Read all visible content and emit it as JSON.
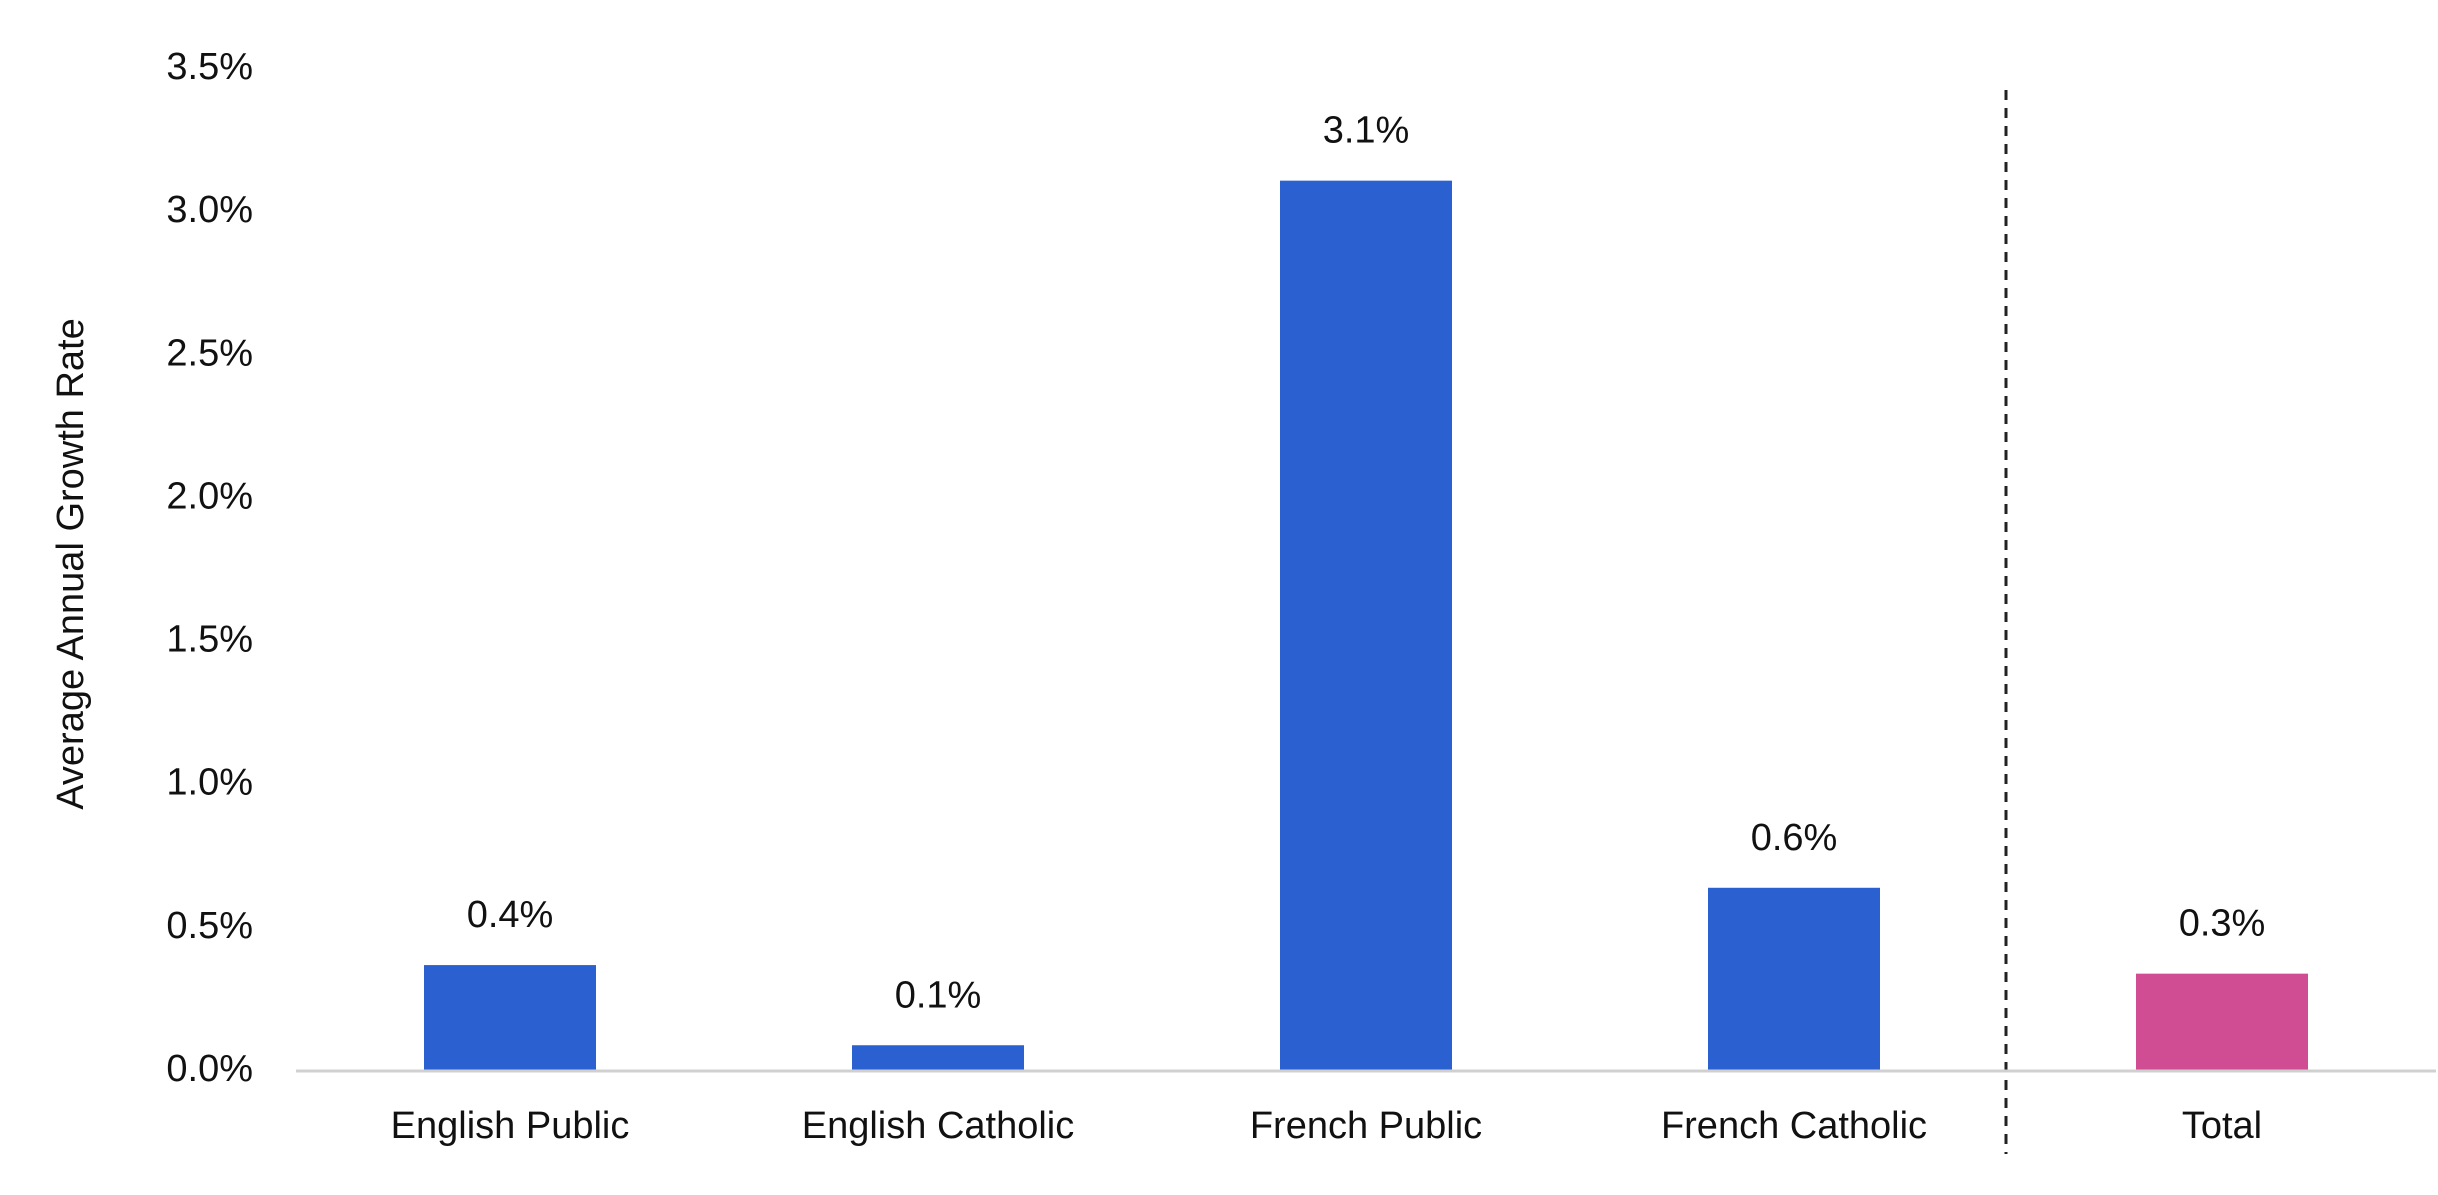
{
  "chart_data": {
    "type": "bar",
    "ylabel": "Average Annual Growth Rate",
    "categories": [
      "English Public",
      "English Catholic",
      "French Public",
      "French Catholic",
      "Total"
    ],
    "values": [
      0.37,
      0.09,
      3.11,
      0.64,
      0.34
    ],
    "value_labels": [
      "0.4%",
      "0.1%",
      "3.1%",
      "0.6%",
      "0.3%"
    ],
    "colors": [
      "#2b60d0",
      "#2b60d0",
      "#2b60d0",
      "#2b60d0",
      "#d14d93"
    ],
    "ylim": [
      0,
      3.5
    ],
    "yticks": [
      {
        "value": 0,
        "label": "0.0%"
      },
      {
        "value": 0.5,
        "label": "0.5%"
      },
      {
        "value": 1,
        "label": "1.0%"
      },
      {
        "value": 1.5,
        "label": "1.5%"
      },
      {
        "value": 2,
        "label": "2.0%"
      },
      {
        "value": 2.5,
        "label": "2.5%"
      },
      {
        "value": 3,
        "label": "3.0%"
      },
      {
        "value": 3.5,
        "label": "3.5%"
      }
    ],
    "grid": false
  }
}
